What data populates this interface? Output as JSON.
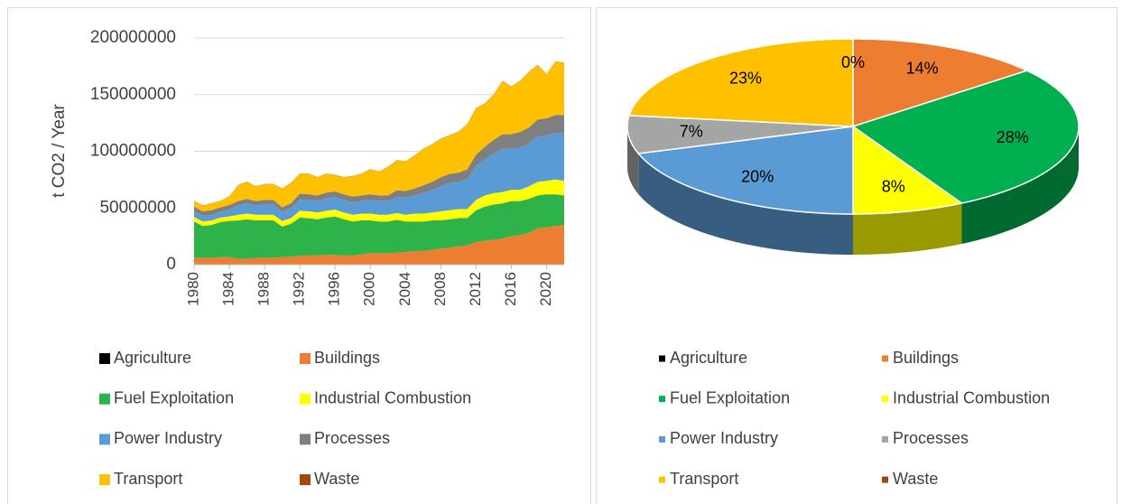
{
  "chart_data": [
    {
      "type": "stacked_area",
      "ylabel": "t CO2 / Year",
      "x": [
        1980,
        1981,
        1982,
        1983,
        1984,
        1985,
        1986,
        1987,
        1988,
        1989,
        1990,
        1991,
        1992,
        1993,
        1994,
        1995,
        1996,
        1997,
        1998,
        1999,
        2000,
        2001,
        2002,
        2003,
        2004,
        2005,
        2006,
        2007,
        2008,
        2009,
        2010,
        2011,
        2012,
        2013,
        2014,
        2015,
        2016,
        2017,
        2018,
        2019,
        2020,
        2021,
        2022
      ],
      "xlim": [
        1980,
        2022
      ],
      "xticks": [
        1980,
        1984,
        1988,
        1992,
        1996,
        2000,
        2004,
        2008,
        2012,
        2016,
        2020
      ],
      "ylim": [
        0,
        200000000
      ],
      "yticks": [
        0,
        50000000,
        100000000,
        150000000,
        200000000
      ],
      "series": [
        {
          "name": "Agriculture",
          "color": "#000000",
          "values": [
            50000,
            50000,
            50000,
            50000,
            50000,
            50000,
            50000,
            50000,
            50000,
            50000,
            50000,
            50000,
            50000,
            50000,
            50000,
            50000,
            50000,
            50000,
            50000,
            50000,
            50000,
            50000,
            50000,
            50000,
            50000,
            50000,
            50000,
            50000,
            50000,
            50000,
            50000,
            50000,
            50000,
            50000,
            50000,
            50000,
            50000,
            50000,
            50000,
            50000,
            50000,
            50000,
            50000
          ]
        },
        {
          "name": "Buildings",
          "color": "#ed7d31",
          "values": [
            6000000,
            6000000,
            6000000,
            6500000,
            6500000,
            5000000,
            5000000,
            6000000,
            6000000,
            6000000,
            6500000,
            7000000,
            7500000,
            8000000,
            8000000,
            8500000,
            8500000,
            8000000,
            8000000,
            9000000,
            10000000,
            10000000,
            10000000,
            10500000,
            11000000,
            12000000,
            12000000,
            13000000,
            14000000,
            15000000,
            16000000,
            17000000,
            20000000,
            21000000,
            22000000,
            23000000,
            25000000,
            26000000,
            28000000,
            32000000,
            33000000,
            34000000,
            35000000
          ]
        },
        {
          "name": "Fuel Exploitation",
          "color": "#2db34a",
          "values": [
            32000000,
            28000000,
            29000000,
            31000000,
            32000000,
            34000000,
            35000000,
            33000000,
            33000000,
            33000000,
            27000000,
            29000000,
            34000000,
            33000000,
            32000000,
            33000000,
            34000000,
            32000000,
            30000000,
            30000000,
            29000000,
            28000000,
            28000000,
            29000000,
            27000000,
            26000000,
            26000000,
            26000000,
            25000000,
            25000000,
            25000000,
            24000000,
            28000000,
            30000000,
            31000000,
            31000000,
            31000000,
            30000000,
            30000000,
            29000000,
            29000000,
            28000000,
            26000000
          ]
        },
        {
          "name": "Industrial Combustion",
          "color": "#ffff00",
          "values": [
            4000000,
            4000000,
            4000000,
            4000000,
            4000000,
            5000000,
            5000000,
            5000000,
            5000000,
            5000000,
            5000000,
            5000000,
            6000000,
            6000000,
            6000000,
            6000000,
            6000000,
            6000000,
            6000000,
            6000000,
            6000000,
            6000000,
            6000000,
            6000000,
            6000000,
            7000000,
            7000000,
            7000000,
            8000000,
            8000000,
            8000000,
            8000000,
            9000000,
            10000000,
            10000000,
            10000000,
            10000000,
            10000000,
            11000000,
            12000000,
            12000000,
            13000000,
            13000000
          ]
        },
        {
          "name": "Power Industry",
          "color": "#5b9bd5",
          "values": [
            5000000,
            5000000,
            5000000,
            5000000,
            6000000,
            8000000,
            9000000,
            8000000,
            9000000,
            9000000,
            8000000,
            9000000,
            10000000,
            10000000,
            10000000,
            11000000,
            11000000,
            11000000,
            11000000,
            11000000,
            12000000,
            12000000,
            12000000,
            14000000,
            15000000,
            16000000,
            18000000,
            20000000,
            22000000,
            24000000,
            24000000,
            26000000,
            30000000,
            32000000,
            35000000,
            38000000,
            36000000,
            37000000,
            38000000,
            40000000,
            40000000,
            41000000,
            42000000
          ]
        },
        {
          "name": "Processes",
          "color": "#7f7f7f",
          "values": [
            4000000,
            4000000,
            4000000,
            4000000,
            4000000,
            4000000,
            4000000,
            4000000,
            4000000,
            4000000,
            4000000,
            4000000,
            5000000,
            5000000,
            5000000,
            5000000,
            5000000,
            5000000,
            5000000,
            5000000,
            5000000,
            5000000,
            5000000,
            6000000,
            6000000,
            6000000,
            7000000,
            7000000,
            8000000,
            8000000,
            8000000,
            9000000,
            10000000,
            11000000,
            12000000,
            13000000,
            13000000,
            14000000,
            14000000,
            15000000,
            15000000,
            16000000,
            16000000
          ]
        },
        {
          "name": "Transport",
          "color": "#ffc000",
          "values": [
            5000000,
            5000000,
            6000000,
            5500000,
            7500000,
            14000000,
            15000000,
            13000000,
            14000000,
            14000000,
            16500000,
            18000000,
            17500000,
            18000000,
            16000000,
            16500000,
            14500000,
            15000000,
            18000000,
            19000000,
            22000000,
            21000000,
            25000000,
            26500000,
            26000000,
            29000000,
            32000000,
            33000000,
            34000000,
            34000000,
            36000000,
            40000000,
            41000000,
            38000000,
            40000000,
            47000000,
            42000000,
            45000000,
            49000000,
            48000000,
            39000000,
            47000000,
            46000000
          ]
        },
        {
          "name": "Waste",
          "color": "#9e480e",
          "values": [
            200000,
            200000,
            200000,
            200000,
            200000,
            200000,
            200000,
            200000,
            200000,
            200000,
            200000,
            200000,
            200000,
            200000,
            200000,
            200000,
            200000,
            200000,
            200000,
            200000,
            200000,
            200000,
            200000,
            200000,
            200000,
            200000,
            200000,
            200000,
            200000,
            200000,
            200000,
            200000,
            200000,
            200000,
            200000,
            200000,
            200000,
            200000,
            200000,
            200000,
            200000,
            200000,
            200000
          ]
        }
      ]
    },
    {
      "type": "pie",
      "categories": [
        "Agriculture",
        "Buildings",
        "Fuel Exploitation",
        "Industrial Combustion",
        "Power Industry",
        "Processes",
        "Transport",
        "Waste"
      ],
      "values": [
        0,
        14,
        28,
        8,
        20,
        7,
        23,
        0
      ],
      "value_labels": [
        "0%",
        "14%",
        "28%",
        "8%",
        "20%",
        "7%",
        "23%",
        null
      ],
      "colors": [
        "#000000",
        "#ed7d31",
        "#00b050",
        "#ffff00",
        "#5b9bd5",
        "#a5a5a5",
        "#ffc000",
        "#9e480e"
      ]
    }
  ]
}
